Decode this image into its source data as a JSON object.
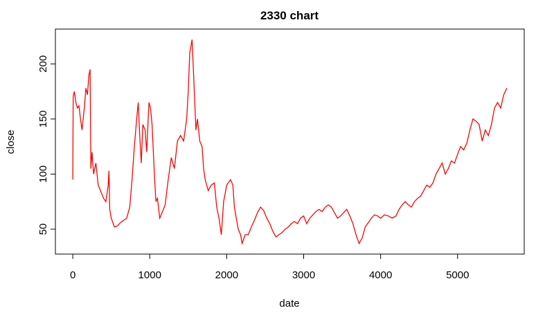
{
  "chart_data": {
    "type": "line",
    "title": "2330 chart",
    "x_label": "date",
    "y_label": "close",
    "color": "#ff0000",
    "x": [
      0,
      5,
      20,
      40,
      60,
      80,
      100,
      120,
      150,
      170,
      190,
      210,
      225,
      235,
      250,
      270,
      300,
      330,
      360,
      400,
      430,
      460,
      470,
      480,
      500,
      540,
      580,
      620,
      660,
      700,
      740,
      770,
      800,
      830,
      850,
      870,
      890,
      910,
      940,
      960,
      990,
      1010,
      1030,
      1060,
      1080,
      1100,
      1130,
      1160,
      1200,
      1240,
      1280,
      1320,
      1360,
      1400,
      1440,
      1480,
      1500,
      1520,
      1550,
      1570,
      1600,
      1620,
      1650,
      1680,
      1700,
      1720,
      1760,
      1800,
      1840,
      1870,
      1900,
      1930,
      1960,
      2000,
      2050,
      2080,
      2100,
      2150,
      2180,
      2200,
      2240,
      2280,
      2320,
      2360,
      2400,
      2440,
      2480,
      2520,
      2560,
      2600,
      2640,
      2680,
      2720,
      2760,
      2800,
      2840,
      2880,
      2920,
      2960,
      3000,
      3040,
      3080,
      3120,
      3160,
      3200,
      3240,
      3280,
      3320,
      3360,
      3400,
      3440,
      3480,
      3520,
      3560,
      3600,
      3640,
      3680,
      3720,
      3760,
      3800,
      3840,
      3880,
      3920,
      3960,
      4000,
      4050,
      4100,
      4150,
      4200,
      4240,
      4280,
      4320,
      4360,
      4400,
      4440,
      4480,
      4520,
      4560,
      4600,
      4640,
      4680,
      4720,
      4760,
      4800,
      4840,
      4880,
      4920,
      4960,
      5000,
      5040,
      5080,
      5120,
      5160,
      5200,
      5240,
      5280,
      5320,
      5360,
      5400,
      5440,
      5480,
      5520,
      5560,
      5600,
      5640
    ],
    "values": [
      95,
      170,
      175,
      165,
      160,
      162,
      150,
      140,
      160,
      178,
      172,
      190,
      195,
      105,
      120,
      100,
      110,
      90,
      85,
      78,
      75,
      90,
      103,
      68,
      60,
      52,
      53,
      56,
      58,
      60,
      70,
      95,
      125,
      150,
      165,
      135,
      110,
      145,
      140,
      120,
      165,
      160,
      145,
      100,
      75,
      78,
      60,
      65,
      72,
      95,
      115,
      105,
      130,
      135,
      130,
      150,
      175,
      210,
      222,
      190,
      140,
      150,
      130,
      125,
      105,
      95,
      85,
      90,
      92,
      70,
      60,
      45,
      75,
      90,
      95,
      90,
      70,
      50,
      45,
      37,
      45,
      45,
      52,
      58,
      65,
      70,
      67,
      60,
      55,
      48,
      43,
      45,
      47,
      50,
      52,
      55,
      57,
      55,
      60,
      62,
      55,
      60,
      63,
      66,
      68,
      66,
      70,
      72,
      70,
      65,
      60,
      62,
      65,
      68,
      62,
      55,
      45,
      37,
      42,
      52,
      56,
      60,
      63,
      62,
      60,
      63,
      62,
      60,
      62,
      68,
      72,
      75,
      72,
      70,
      75,
      78,
      80,
      85,
      90,
      88,
      92,
      100,
      105,
      110,
      100,
      105,
      112,
      110,
      118,
      125,
      122,
      128,
      140,
      150,
      148,
      145,
      130,
      140,
      135,
      145,
      160,
      165,
      160,
      172,
      178
    ],
    "xlim": [
      -226,
      5866
    ],
    "ylim": [
      27.4,
      231.6
    ],
    "xticks": [
      0,
      1000,
      2000,
      3000,
      4000,
      5000
    ],
    "yticks": [
      50,
      100,
      150,
      200
    ]
  }
}
